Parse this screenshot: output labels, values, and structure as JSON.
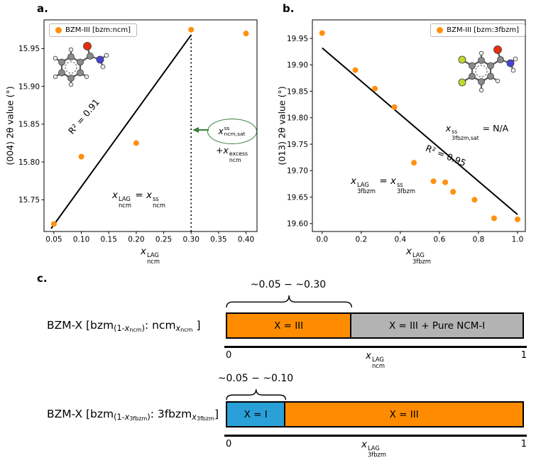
{
  "figure": {
    "panel_a_label": "a.",
    "panel_b_label": "b.",
    "panel_c_label": "c."
  },
  "colors": {
    "marker_orange": "#ff9010",
    "bar_orange": "#ff8c00",
    "bar_gray": "#b3b3b3",
    "bar_blue": "#2aa0d8",
    "annotation_green": "#3a7d3a",
    "fit_line": "#000000"
  },
  "chart_data": [
    {
      "type": "scatter",
      "panel": "a",
      "legend": [
        "BZM-III [bzm:ncm]"
      ],
      "legend_position": "upper left",
      "xlabel": "x_ncm^LAG",
      "ylabel": "(004) 2θ value (°)",
      "xlim": [
        0.032,
        0.42
      ],
      "ylim": [
        15.708,
        15.988
      ],
      "xticks": [
        0.05,
        0.1,
        0.15,
        0.2,
        0.25,
        0.3,
        0.35,
        0.4
      ],
      "xtick_labels": [
        "0.05",
        "0.10",
        "0.15",
        "0.20",
        "0.25",
        "0.30",
        "0.35",
        "0.40"
      ],
      "yticks": [
        15.75,
        15.8,
        15.85,
        15.9,
        15.95
      ],
      "ytick_labels": [
        "15.75",
        "15.80",
        "15.85",
        "15.90",
        "15.95"
      ],
      "points": [
        [
          0.05,
          15.718
        ],
        [
          0.1,
          15.807
        ],
        [
          0.2,
          15.825
        ],
        [
          0.3,
          15.975
        ],
        [
          0.4,
          15.97
        ]
      ],
      "fit_line": {
        "x": [
          0.045,
          0.3
        ],
        "y": [
          15.712,
          15.968
        ],
        "r2": 0.91,
        "label": "R² = 0.91"
      },
      "dotted_vline": {
        "x": 0.3,
        "y_top": 15.975
      },
      "annotations": [
        "x_ncm,sat^ss",
        "+x_ncm^excess",
        "x_ncm^LAG = x_ncm^ss"
      ]
    },
    {
      "type": "scatter",
      "panel": "b",
      "legend": [
        "BZM-III [bzm:3fbzm]"
      ],
      "legend_position": "upper right",
      "xlabel": "x_3fbzm^LAG",
      "ylabel": "(013) 2θ value (°)",
      "xlim": [
        -0.05,
        1.04
      ],
      "ylim": [
        19.585,
        19.985
      ],
      "xticks": [
        0,
        0.2,
        0.4,
        0.6,
        0.8,
        1
      ],
      "xtick_labels": [
        "0.0",
        "0.2",
        "0.4",
        "0.6",
        "0.8",
        "1.0"
      ],
      "yticks": [
        19.6,
        19.65,
        19.7,
        19.75,
        19.8,
        19.85,
        19.9,
        19.95
      ],
      "ytick_labels": [
        "19.60",
        "19.65",
        "19.70",
        "19.75",
        "19.80",
        "19.85",
        "19.90",
        "19.95"
      ],
      "points": [
        [
          0,
          19.96
        ],
        [
          0.17,
          19.89
        ],
        [
          0.27,
          19.855
        ],
        [
          0.37,
          19.82
        ],
        [
          0.47,
          19.715
        ],
        [
          0.57,
          19.68
        ],
        [
          0.63,
          19.678
        ],
        [
          0.67,
          19.66
        ],
        [
          0.78,
          19.645
        ],
        [
          0.88,
          19.61
        ],
        [
          1,
          19.608
        ]
      ],
      "fit_line": {
        "x": [
          0,
          1
        ],
        "y": [
          19.932,
          19.617
        ],
        "r2": 0.95,
        "label": "R² = 0.95"
      },
      "annotations": [
        "x_3fbzm,sat^ss = N/A",
        "x_3fbzm^LAG = x_3fbzm^ss"
      ]
    }
  ],
  "panel_a": {
    "legend": "BZM-III [bzm:ncm]",
    "ylabel": "(004) 2θ value (°)",
    "r2": "R² = 0.91",
    "molecule": "benzamide ball-and-stick model",
    "xlabel_math": [
      {
        "t": "x",
        "i": true
      },
      {
        "stack": {
          "sup": "LAG",
          "sub": "ncm"
        }
      }
    ],
    "eq_math": [
      {
        "t": "x",
        "i": true
      },
      {
        "stack": {
          "sup": "LAG",
          "sub": "ncm"
        }
      },
      {
        "t": " = "
      },
      {
        "t": "x",
        "i": true
      },
      {
        "stack": {
          "sup": "ss",
          "sub": "ncm"
        }
      }
    ],
    "sat_math": [
      {
        "t": "x",
        "i": true
      },
      {
        "stack": {
          "sup": "ss",
          "sub": "ncm,sat"
        }
      }
    ],
    "excess_math": [
      {
        "t": "+"
      },
      {
        "t": "x",
        "i": true
      },
      {
        "stack": {
          "sup": "excess",
          "sub": "ncm"
        }
      }
    ]
  },
  "panel_b": {
    "legend": "BZM-III [bzm:3fbzm]",
    "ylabel": "(013) 2θ value (°)",
    "r2": "R² = 0.95",
    "molecule": "3-fluorobenzamide ball-and-stick model",
    "xlabel_math": [
      {
        "t": "x",
        "i": true
      },
      {
        "stack": {
          "sup": "LAG",
          "sub": "3fbzm"
        }
      }
    ],
    "eq_math": [
      {
        "t": "x",
        "i": true
      },
      {
        "stack": {
          "sup": "LAG",
          "sub": "3fbzm"
        }
      },
      {
        "t": " = "
      },
      {
        "t": "x",
        "i": true
      },
      {
        "stack": {
          "sup": "ss",
          "sub": "3fbzm"
        }
      }
    ],
    "sat_math": [
      {
        "t": "x",
        "i": true
      },
      {
        "stack": {
          "sup": "ss",
          "sub": "3fbzm,sat"
        }
      },
      {
        "t": " = N/A"
      }
    ]
  },
  "panel_c": {
    "bars": [
      {
        "row_label_math": [
          {
            "t": "BZM-X [bzm"
          },
          {
            "t": "(1-",
            "s": "sub"
          },
          {
            "t": "x",
            "s": "sub",
            "i": true
          },
          {
            "t": "ncm",
            "s": "ss2"
          },
          {
            "t": ")",
            "s": "sub"
          },
          {
            "t": ": ncm"
          },
          {
            "t": "x",
            "s": "sub",
            "i": true
          },
          {
            "t": "ncm",
            "s": "ss2"
          },
          {
            "t": " ]"
          }
        ],
        "brace_label": "~0.05 − ~0.30",
        "segments": [
          {
            "label": "X = III",
            "color_key": "bar_orange",
            "frac": 0.42
          },
          {
            "label": "X = III + Pure NCM-I",
            "color_key": "bar_gray",
            "frac": 0.58
          }
        ],
        "axis": {
          "left": "0",
          "right": "1",
          "label_math": [
            {
              "t": "x",
              "i": true
            },
            {
              "stack": {
                "sup": "LAG",
                "sub": "ncm"
              }
            }
          ]
        }
      },
      {
        "row_label_math": [
          {
            "t": "BZM-X [bzm"
          },
          {
            "t": "(1-",
            "s": "sub"
          },
          {
            "t": "x",
            "s": "sub",
            "i": true
          },
          {
            "t": "3fbzm",
            "s": "ss2"
          },
          {
            "t": ")",
            "s": "sub"
          },
          {
            "t": ": 3fbzm"
          },
          {
            "t": "x",
            "s": "sub",
            "i": true
          },
          {
            "t": "3fbzm",
            "s": "ss2"
          },
          {
            "t": "]"
          }
        ],
        "brace_label": "~0.05 − ~0.10",
        "segments": [
          {
            "label": "X = I",
            "color_key": "bar_blue",
            "frac": 0.2
          },
          {
            "label": "X = III",
            "color_key": "bar_orange",
            "frac": 0.8
          }
        ],
        "axis": {
          "left": "0",
          "right": "1",
          "label_math": [
            {
              "t": "x",
              "i": true
            },
            {
              "stack": {
                "sup": "LAG",
                "sub": "3fbzm"
              }
            }
          ]
        }
      }
    ]
  }
}
